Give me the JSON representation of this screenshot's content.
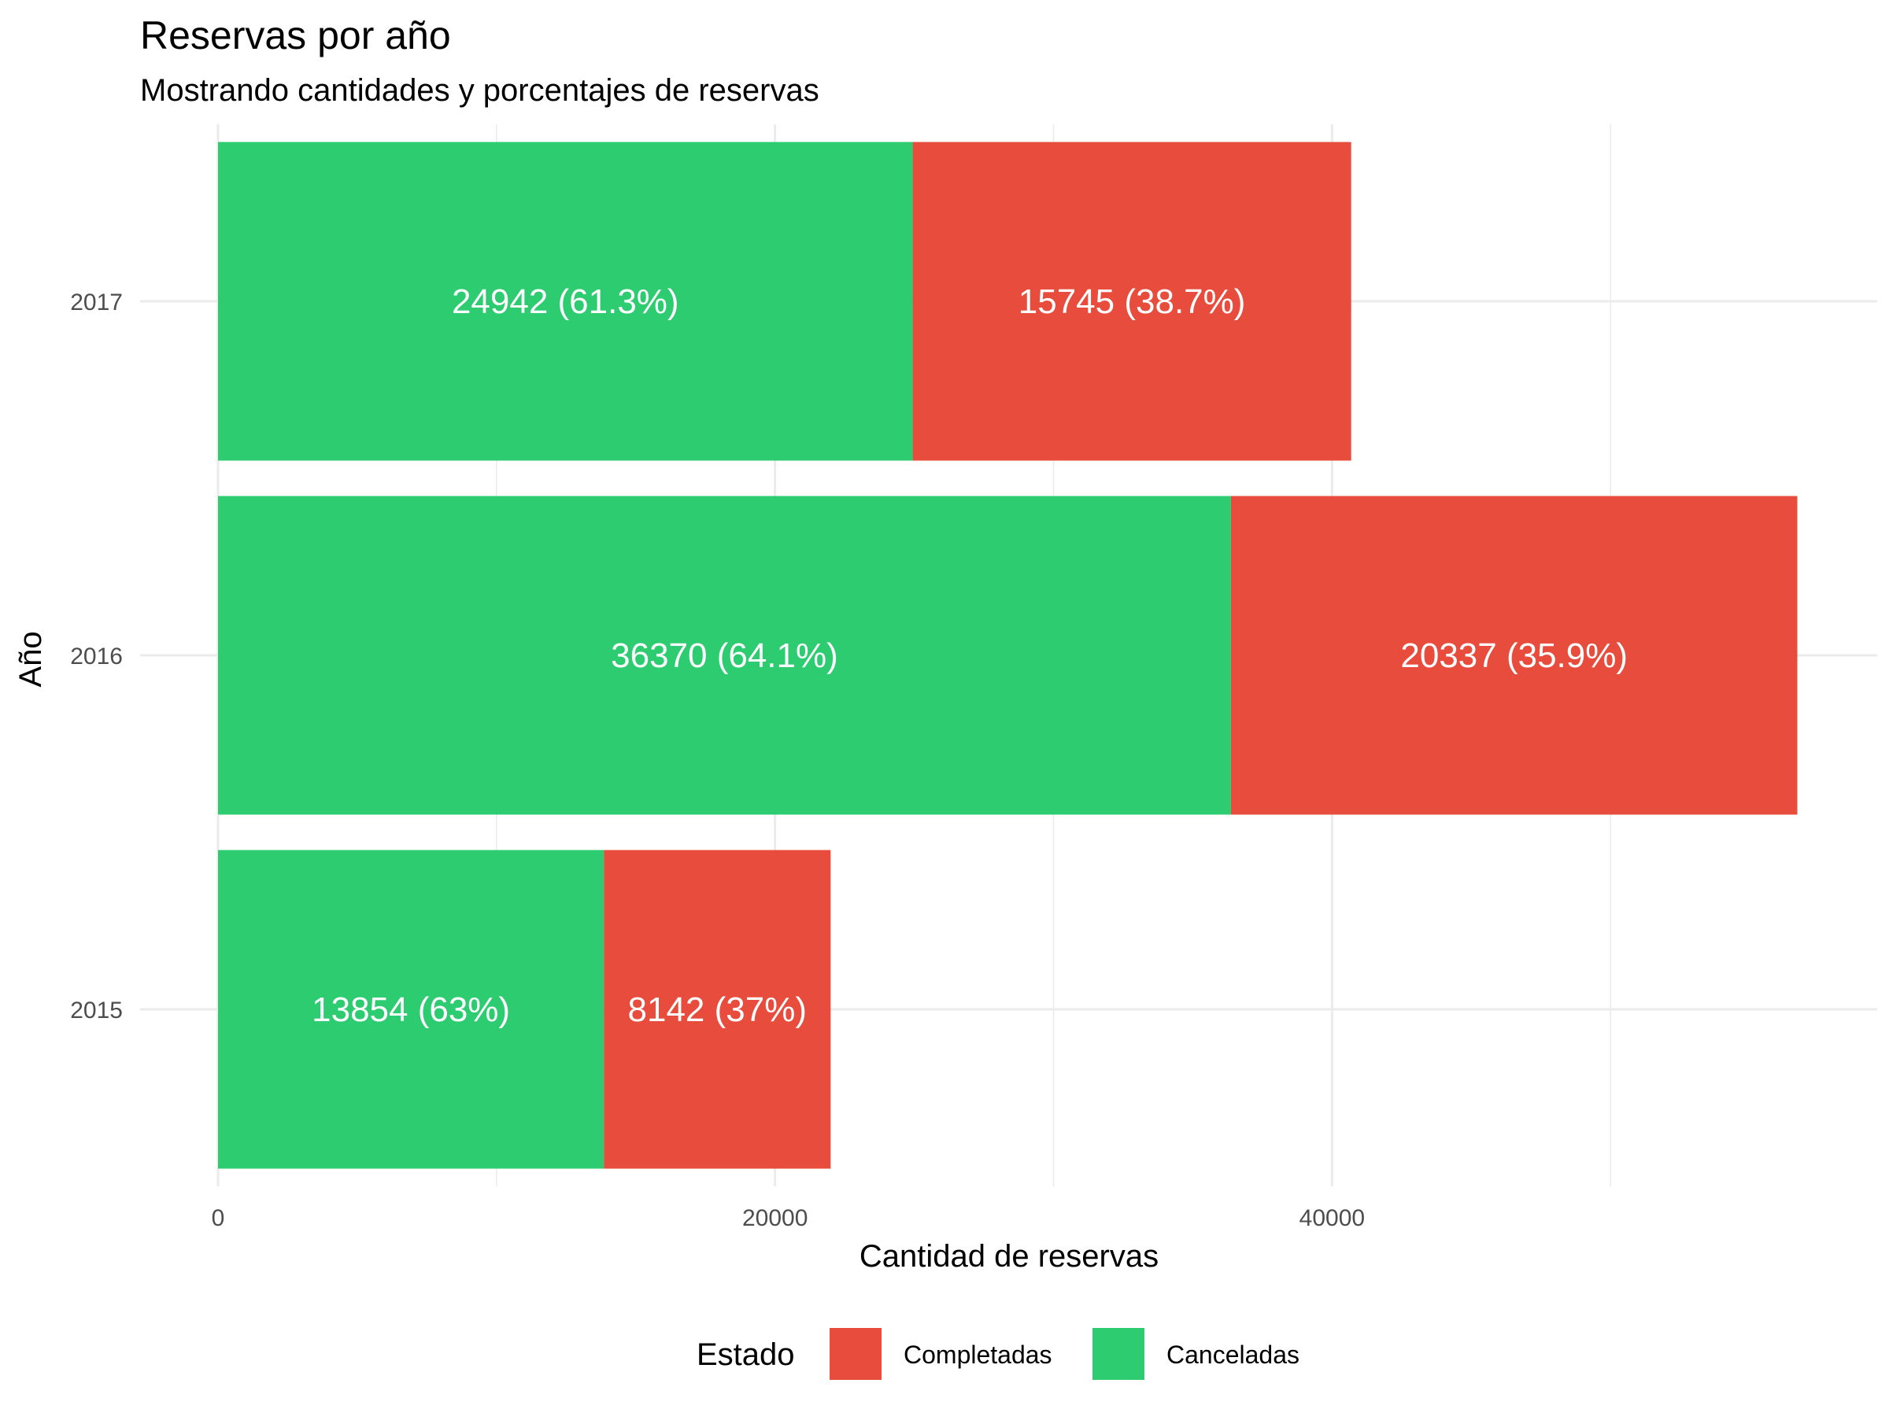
{
  "chart_data": {
    "type": "bar",
    "orientation": "horizontal",
    "stacked": true,
    "title": "Reservas por año",
    "subtitle": "Mostrando cantidades y porcentajes de reservas",
    "xlabel": "Cantidad de reservas",
    "ylabel": "Año",
    "categories": [
      "2015",
      "2016",
      "2017"
    ],
    "xlim": [
      0,
      56707
    ],
    "x_ticks": [
      0,
      20000,
      40000
    ],
    "x_tick_labels": [
      "0",
      "20000",
      "40000"
    ],
    "grid": true,
    "legend_position": "bottom",
    "legend_title": "Estado",
    "legend_entries": [
      "Completadas",
      "Canceladas"
    ],
    "series": [
      {
        "name": "Canceladas",
        "color": "#2ecc71",
        "values": [
          13854,
          36370,
          24942
        ],
        "labels": [
          "13854 (63%)",
          "36370 (64.1%)",
          "24942 (61.3%)"
        ]
      },
      {
        "name": "Completadas",
        "color": "#e74c3c",
        "values": [
          8142,
          20337,
          15745
        ],
        "labels": [
          "8142 (37%)",
          "20337 (35.9%)",
          "15745 (38.7%)"
        ]
      }
    ]
  }
}
